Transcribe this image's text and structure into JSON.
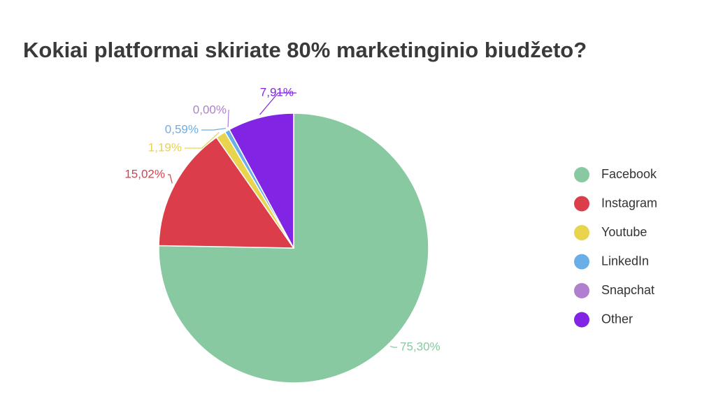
{
  "chart_data": {
    "type": "pie",
    "title": "Kokiai platformai skiriate 80% marketinginio biudžeto?",
    "categories": [
      "Facebook",
      "Instagram",
      "Youtube",
      "LinkedIn",
      "Snapchat",
      "Other"
    ],
    "values": [
      75.3,
      15.02,
      1.19,
      0.59,
      0.0,
      7.91
    ],
    "value_labels": [
      "75,30%",
      "15,02%",
      "1,19%",
      "0,59%",
      "0,00%",
      "7,91%"
    ],
    "colors": [
      "#88c9a1",
      "#dc3d4a",
      "#e8d44d",
      "#6aaee8",
      "#b07fcf",
      "#8224e3"
    ],
    "legend": "right"
  }
}
